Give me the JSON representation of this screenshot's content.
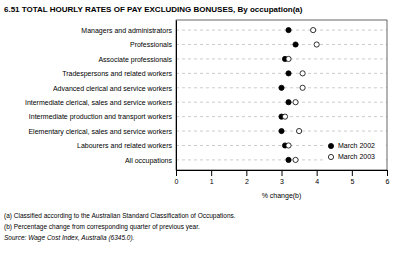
{
  "chart_data": {
    "type": "dot",
    "title": "6.51  TOTAL HOURLY RATES OF PAY EXCLUDING BONUSES, By occupation(a)",
    "categories": [
      "All occupations",
      "Labourers and related workers",
      "Elementary clerical, sales and service workers",
      "Intermediate production and transport workers",
      "Intermediate clerical, sales and service workers",
      "Advanced clerical and service workers",
      "Tradespersons and related workers",
      "Associate professionals",
      "Professionals",
      "Managers and administrators"
    ],
    "series": [
      {
        "name": "March 2002",
        "marker": "filled-circle",
        "values": [
          3.2,
          3.1,
          3.0,
          3.0,
          3.2,
          3.0,
          3.2,
          3.1,
          3.4,
          3.2
        ]
      },
      {
        "name": "March 2003",
        "marker": "open-circle",
        "values": [
          3.4,
          3.2,
          3.5,
          3.1,
          3.4,
          3.6,
          3.6,
          3.2,
          4.0,
          3.9
        ]
      }
    ],
    "x_label": "% change(b)",
    "xlim": [
      0,
      6
    ],
    "xticks": [
      0,
      1,
      2,
      3,
      4,
      5,
      6
    ],
    "grid": true,
    "legend": "lower right",
    "annotations": [
      "(a) Classified according to the Australian Standard Classification of Occupations.",
      "(b) Percentage change from corresponding quarter of previous year.",
      "Source: Wage Cost Index, Australia (6345.0)."
    ]
  }
}
